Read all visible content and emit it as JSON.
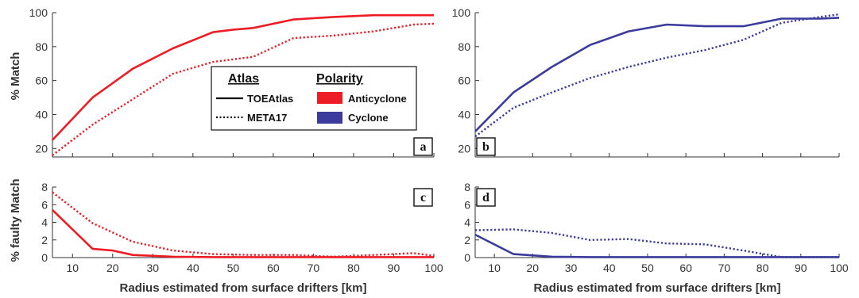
{
  "colors": {
    "anticyclone": "#ee1c25",
    "cyclone": "#3a3b9c",
    "axis": "#333333"
  },
  "figure": {
    "xlabel_left": "Radius estimated from surface drifters [km]",
    "xlabel_right": "Radius estimated from surface drifters [km]",
    "ylabel_top": "% Match",
    "ylabel_bottom": "% faulty Match",
    "legend": {
      "atlas_title": "Atlas",
      "polarity_title": "Polarity",
      "atlas_solid": "TOEAtlas",
      "atlas_dotted": "META17",
      "polarity_red": "Anticyclone",
      "polarity_blue": "Cyclone"
    }
  },
  "chart_data": [
    {
      "panel": "a",
      "type": "line",
      "xlim": [
        5,
        100
      ],
      "ylim": [
        15,
        100
      ],
      "xticks": [
        10,
        20,
        30,
        40,
        50,
        60,
        70,
        80,
        90,
        100
      ],
      "yticks": [
        20,
        40,
        60,
        80,
        100
      ],
      "show_xticks": false,
      "series": [
        {
          "name": "TOEAtlas",
          "polarity": "Anticyclone",
          "style": "solid",
          "x": [
            5,
            15,
            25,
            35,
            45,
            50,
            55,
            65,
            75,
            85,
            95,
            100
          ],
          "y": [
            25,
            50,
            67,
            79,
            88.5,
            90,
            91,
            96,
            97.5,
            98.5,
            98.5,
            98.5
          ]
        },
        {
          "name": "META17",
          "polarity": "Anticyclone",
          "style": "dotted",
          "x": [
            5,
            15,
            25,
            35,
            45,
            55,
            65,
            75,
            85,
            95,
            100
          ],
          "y": [
            16,
            34,
            49,
            64,
            71,
            74,
            85,
            86.5,
            89,
            93,
            93.5
          ]
        }
      ]
    },
    {
      "panel": "b",
      "type": "line",
      "xlim": [
        5,
        100
      ],
      "ylim": [
        15,
        100
      ],
      "xticks": [
        10,
        20,
        30,
        40,
        50,
        60,
        70,
        80,
        90,
        100
      ],
      "yticks": [
        20,
        40,
        60,
        80,
        100
      ],
      "show_xticks": false,
      "series": [
        {
          "name": "TOEAtlas",
          "polarity": "Cyclone",
          "style": "solid",
          "x": [
            5,
            15,
            25,
            35,
            45,
            55,
            65,
            75,
            85,
            95,
            100
          ],
          "y": [
            30,
            53,
            68,
            81,
            89,
            93,
            92,
            92,
            96.5,
            96.5,
            97
          ]
        },
        {
          "name": "META17",
          "polarity": "Cyclone",
          "style": "dotted",
          "x": [
            5,
            15,
            25,
            35,
            45,
            55,
            65,
            75,
            85,
            95,
            100
          ],
          "y": [
            27,
            44,
            53,
            61.5,
            68,
            73.5,
            78,
            84,
            94,
            97.5,
            99
          ]
        }
      ]
    },
    {
      "panel": "c",
      "type": "line",
      "xlim": [
        5,
        100
      ],
      "ylim": [
        0,
        8
      ],
      "xticks": [
        10,
        20,
        30,
        40,
        50,
        60,
        70,
        80,
        90,
        100
      ],
      "yticks": [
        0,
        2,
        4,
        6,
        8
      ],
      "show_xticks": true,
      "series": [
        {
          "name": "TOEAtlas",
          "polarity": "Anticyclone",
          "style": "solid",
          "x": [
            5,
            15,
            20,
            25,
            35,
            45,
            55,
            65,
            75,
            85,
            95,
            100
          ],
          "y": [
            5.4,
            1.0,
            0.8,
            0.3,
            0.1,
            0.05,
            0.05,
            0.05,
            0.05,
            0.05,
            0.05,
            0.05
          ]
        },
        {
          "name": "META17",
          "polarity": "Anticyclone",
          "style": "dotted",
          "x": [
            5,
            15,
            25,
            35,
            45,
            55,
            65,
            75,
            85,
            95,
            100
          ],
          "y": [
            7.4,
            3.9,
            1.8,
            0.8,
            0.4,
            0.3,
            0.3,
            0.1,
            0.3,
            0.5,
            0.2
          ]
        }
      ]
    },
    {
      "panel": "d",
      "type": "line",
      "xlim": [
        5,
        100
      ],
      "ylim": [
        0,
        8
      ],
      "xticks": [
        10,
        20,
        30,
        40,
        50,
        60,
        70,
        80,
        90,
        100
      ],
      "yticks": [
        0,
        2,
        4,
        6,
        8
      ],
      "show_xticks": true,
      "series": [
        {
          "name": "TOEAtlas",
          "polarity": "Cyclone",
          "style": "solid",
          "x": [
            5,
            15,
            25,
            35,
            45,
            55,
            65,
            75,
            85,
            95,
            100
          ],
          "y": [
            2.6,
            0.4,
            0.1,
            0.05,
            0.05,
            0.05,
            0.05,
            0.05,
            0.05,
            0.05,
            0.05
          ]
        },
        {
          "name": "META17",
          "polarity": "Cyclone",
          "style": "dotted",
          "x": [
            5,
            15,
            25,
            35,
            45,
            55,
            65,
            75,
            85,
            95,
            100
          ],
          "y": [
            3.1,
            3.2,
            2.8,
            2.0,
            2.1,
            1.6,
            1.5,
            0.8,
            0.05,
            0.05,
            0.05
          ]
        }
      ]
    }
  ]
}
